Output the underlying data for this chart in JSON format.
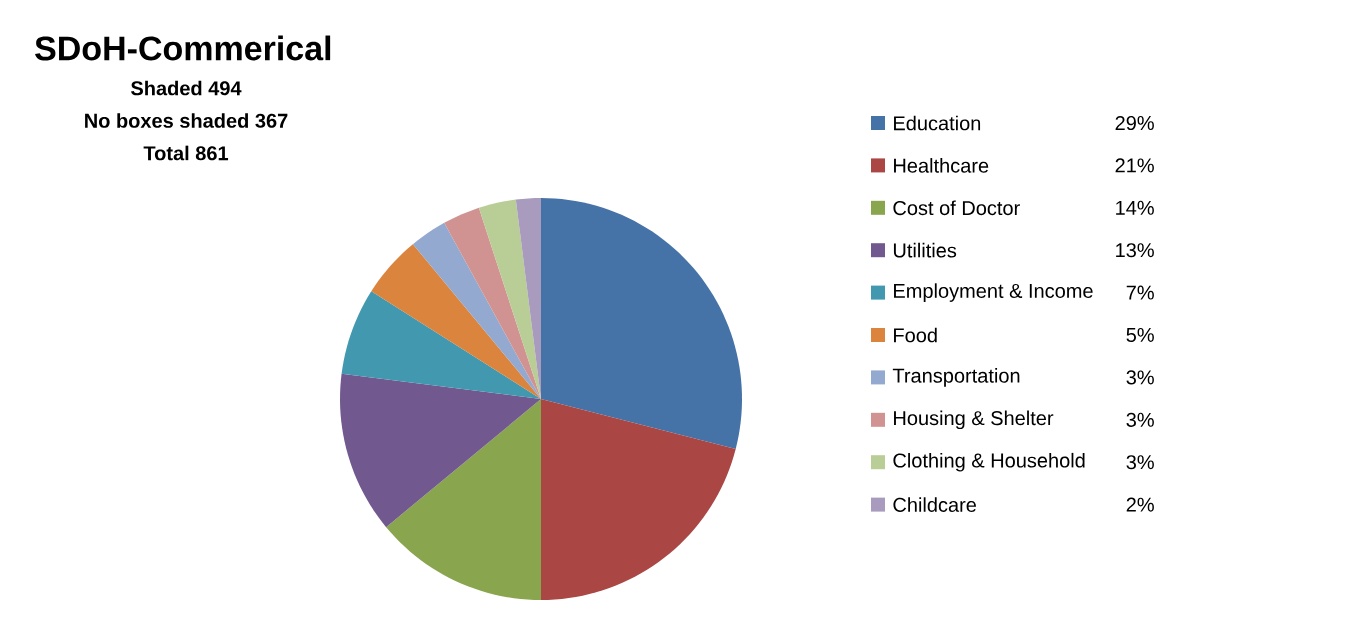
{
  "chart_data": {
    "type": "pie",
    "title": "SDoH-Commerical",
    "annotations": [
      "Shaded 494",
      "No boxes shaded 367",
      "Total 861"
    ],
    "categories": [
      "Education",
      "Healthcare",
      "Cost of Doctor",
      "Utilities",
      "Employment & Income",
      "Food",
      "Transportation",
      "Housing & Shelter",
      "Clothing & Household",
      "Childcare"
    ],
    "values": [
      29,
      21,
      14,
      13,
      7,
      5,
      3,
      3,
      3,
      2
    ],
    "value_labels": [
      "29%",
      "21%",
      "14%",
      "13%",
      "7%",
      "5%",
      "3%",
      "3%",
      "3%",
      "2%"
    ],
    "colors": [
      "#4572a7",
      "#aa4643",
      "#89a54e",
      "#71588f",
      "#4198af",
      "#db843d",
      "#93a9cf",
      "#d19392",
      "#b9cd96",
      "#a99bbd"
    ],
    "legend": "right"
  }
}
